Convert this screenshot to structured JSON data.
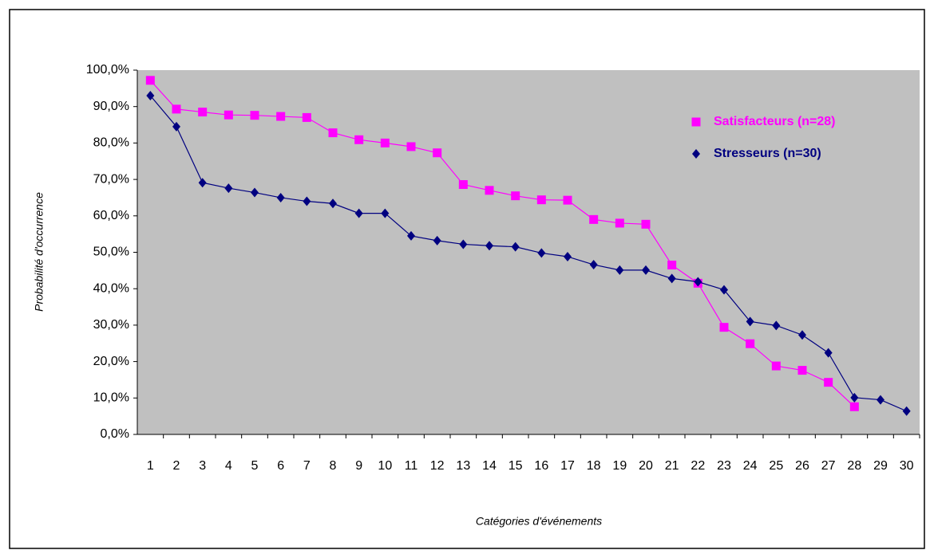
{
  "chart_data": {
    "type": "line",
    "x_label": "Catégories d'événements",
    "y_label": "Probabilité d'occurrence",
    "categories": [
      "1",
      "2",
      "3",
      "4",
      "5",
      "6",
      "7",
      "8",
      "9",
      "10",
      "11",
      "12",
      "13",
      "14",
      "15",
      "16",
      "17",
      "18",
      "19",
      "20",
      "21",
      "22",
      "23",
      "24",
      "25",
      "26",
      "27",
      "28",
      "29",
      "30"
    ],
    "series": [
      {
        "name": "Satisfacteurs (n=28)",
        "color": "#ff00ff",
        "marker": "square",
        "values": [
          97.2,
          89.3,
          88.5,
          87.7,
          87.6,
          87.3,
          87.0,
          82.8,
          80.9,
          80.0,
          79.0,
          77.3,
          68.6,
          67.0,
          65.5,
          64.4,
          64.3,
          59.0,
          58.0,
          57.7,
          46.5,
          41.5,
          29.4,
          24.9,
          18.8,
          17.6,
          14.3,
          7.6,
          null,
          null
        ]
      },
      {
        "name": "Stresseurs (n=30)",
        "color": "#000080",
        "marker": "diamond",
        "values": [
          93.0,
          84.5,
          69.1,
          67.6,
          66.4,
          65.0,
          64.0,
          63.4,
          60.7,
          60.7,
          54.5,
          53.2,
          52.2,
          51.8,
          51.5,
          49.8,
          48.8,
          46.6,
          45.1,
          45.1,
          42.8,
          41.9,
          39.7,
          31.0,
          29.9,
          27.3,
          22.4,
          10.1,
          9.5,
          6.4
        ]
      }
    ],
    "ylim": [
      0,
      100
    ],
    "yticks": [
      {
        "value": 0,
        "label": "0,0%"
      },
      {
        "value": 10,
        "label": "10,0%"
      },
      {
        "value": 20,
        "label": "20,0%"
      },
      {
        "value": 30,
        "label": "30,0%"
      },
      {
        "value": 40,
        "label": "40,0%"
      },
      {
        "value": 50,
        "label": "50,0%"
      },
      {
        "value": 60,
        "label": "60,0%"
      },
      {
        "value": 70,
        "label": "70,0%"
      },
      {
        "value": 80,
        "label": "80,0%"
      },
      {
        "value": 90,
        "label": "90,0%"
      },
      {
        "value": 100,
        "label": "100,0%"
      }
    ],
    "plot_background": "#c0c0c0",
    "grid": false,
    "legend": "upper right"
  }
}
